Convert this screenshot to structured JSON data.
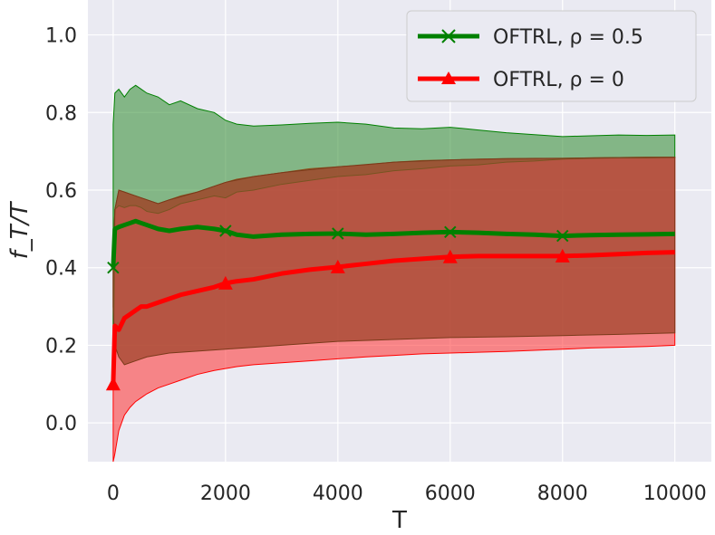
{
  "chart_data": {
    "type": "line",
    "xlabel": "T",
    "ylabel": "f_T/T",
    "xlim": [
      -450,
      10650
    ],
    "ylim": [
      -0.1,
      1.09
    ],
    "xticks": [
      0,
      2000,
      4000,
      6000,
      8000,
      10000
    ],
    "xtick_labels": [
      "0",
      "2000",
      "4000",
      "6000",
      "8000",
      "10000"
    ],
    "yticks": [
      0.0,
      0.2,
      0.4,
      0.6,
      0.8,
      1.0
    ],
    "ytick_labels": [
      "0.0",
      "0.2",
      "0.4",
      "0.6",
      "0.8",
      "1.0"
    ],
    "grid": true,
    "legend_position": "top-right",
    "series": [
      {
        "name": "OFTRL, ρ = 0.5",
        "color": "#008000",
        "marker": "x",
        "x": [
          0,
          30,
          100,
          200,
          300,
          400,
          500,
          600,
          800,
          1000,
          1200,
          1500,
          1800,
          2000,
          2200,
          2500,
          3000,
          3500,
          4000,
          4500,
          5000,
          5500,
          6000,
          6500,
          7000,
          7500,
          8000,
          8500,
          9000,
          9500,
          10000
        ],
        "mean": [
          0.4,
          0.5,
          0.505,
          0.51,
          0.515,
          0.52,
          0.515,
          0.51,
          0.5,
          0.495,
          0.5,
          0.505,
          0.5,
          0.495,
          0.485,
          0.48,
          0.485,
          0.487,
          0.488,
          0.485,
          0.487,
          0.49,
          0.492,
          0.49,
          0.487,
          0.485,
          0.482,
          0.484,
          0.485,
          0.486,
          0.487
        ],
        "upper": [
          0.77,
          0.85,
          0.86,
          0.84,
          0.86,
          0.87,
          0.86,
          0.85,
          0.84,
          0.82,
          0.83,
          0.81,
          0.8,
          0.78,
          0.77,
          0.765,
          0.768,
          0.772,
          0.775,
          0.77,
          0.76,
          0.758,
          0.762,
          0.755,
          0.748,
          0.743,
          0.738,
          0.74,
          0.742,
          0.741,
          0.742
        ],
        "lower": [
          0.1,
          0.55,
          0.56,
          0.555,
          0.56,
          0.56,
          0.555,
          0.545,
          0.54,
          0.55,
          0.565,
          0.575,
          0.585,
          0.58,
          0.595,
          0.6,
          0.615,
          0.625,
          0.635,
          0.64,
          0.65,
          0.655,
          0.662,
          0.665,
          0.672,
          0.675,
          0.68,
          0.682,
          0.683,
          0.683,
          0.684
        ],
        "marker_x": [
          0,
          2000,
          4000,
          6000,
          8000
        ],
        "marker_y": [
          0.4,
          0.495,
          0.488,
          0.492,
          0.482
        ]
      },
      {
        "name": "OFTRL, ρ = 0",
        "color": "#ff0000",
        "marker": "^",
        "x": [
          0,
          30,
          100,
          200,
          300,
          400,
          500,
          600,
          800,
          1000,
          1200,
          1500,
          1800,
          2000,
          2200,
          2500,
          3000,
          3500,
          4000,
          4500,
          5000,
          5500,
          6000,
          6500,
          7000,
          7500,
          8000,
          8500,
          9000,
          9500,
          10000
        ],
        "mean": [
          0.1,
          0.25,
          0.24,
          0.27,
          0.28,
          0.29,
          0.3,
          0.3,
          0.31,
          0.32,
          0.33,
          0.34,
          0.35,
          0.36,
          0.365,
          0.37,
          0.385,
          0.395,
          0.402,
          0.41,
          0.418,
          0.423,
          0.428,
          0.43,
          0.43,
          0.43,
          0.43,
          0.432,
          0.435,
          0.438,
          0.44
        ],
        "upper": [
          0.43,
          0.55,
          0.6,
          0.595,
          0.59,
          0.585,
          0.58,
          0.575,
          0.565,
          0.575,
          0.585,
          0.595,
          0.61,
          0.62,
          0.628,
          0.635,
          0.645,
          0.655,
          0.66,
          0.665,
          0.672,
          0.676,
          0.678,
          0.68,
          0.681,
          0.682,
          0.682,
          0.683,
          0.684,
          0.685,
          0.685
        ],
        "lower": [
          -0.1,
          -0.08,
          -0.02,
          0.02,
          0.04,
          0.055,
          0.065,
          0.075,
          0.09,
          0.1,
          0.11,
          0.125,
          0.135,
          0.14,
          0.145,
          0.15,
          0.155,
          0.16,
          0.165,
          0.17,
          0.174,
          0.178,
          0.18,
          0.182,
          0.184,
          0.187,
          0.19,
          0.193,
          0.195,
          0.197,
          0.2
        ],
        "marker_x": [
          0,
          2000,
          4000,
          6000,
          8000
        ],
        "marker_y": [
          0.1,
          0.36,
          0.402,
          0.428,
          0.43
        ]
      }
    ],
    "dark_band": {
      "x": [
        0,
        30,
        100,
        200,
        400,
        600,
        800,
        1000,
        1500,
        2000,
        2500,
        3000,
        4000,
        5000,
        6000,
        7000,
        8000,
        9000,
        10000
      ],
      "lower": [
        0.3,
        0.2,
        0.17,
        0.15,
        0.16,
        0.17,
        0.175,
        0.18,
        0.185,
        0.19,
        0.195,
        0.2,
        0.21,
        0.215,
        0.22,
        0.222,
        0.225,
        0.228,
        0.232
      ]
    }
  }
}
